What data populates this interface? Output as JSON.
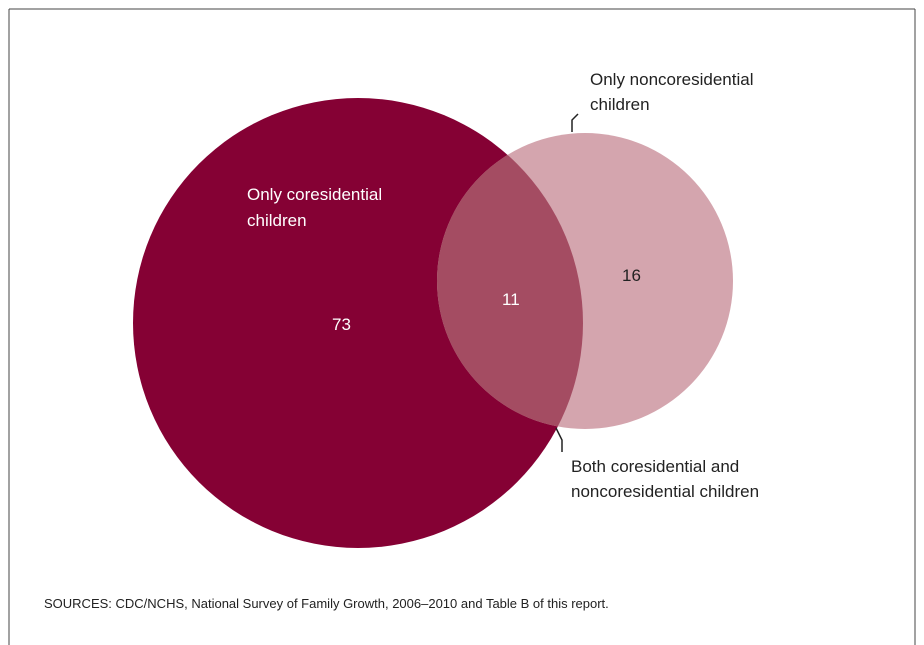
{
  "diagram": {
    "type": "venn",
    "sets": [
      {
        "label_lines": [
          "Only coresidential",
          "children"
        ],
        "value": "73",
        "color": "#850134"
      },
      {
        "label_lines": [
          "Only noncoresidential",
          "children"
        ],
        "value": "16",
        "color": "#d4a5ae"
      }
    ],
    "intersection": {
      "label_lines": [
        "Both coresidential and",
        "noncoresidential children"
      ],
      "value": "11",
      "color": "#a44c62"
    }
  },
  "source": "SOURCES: CDC/NCHS, National Survey of Family Growth, 2006–2010 and Table B of this report."
}
